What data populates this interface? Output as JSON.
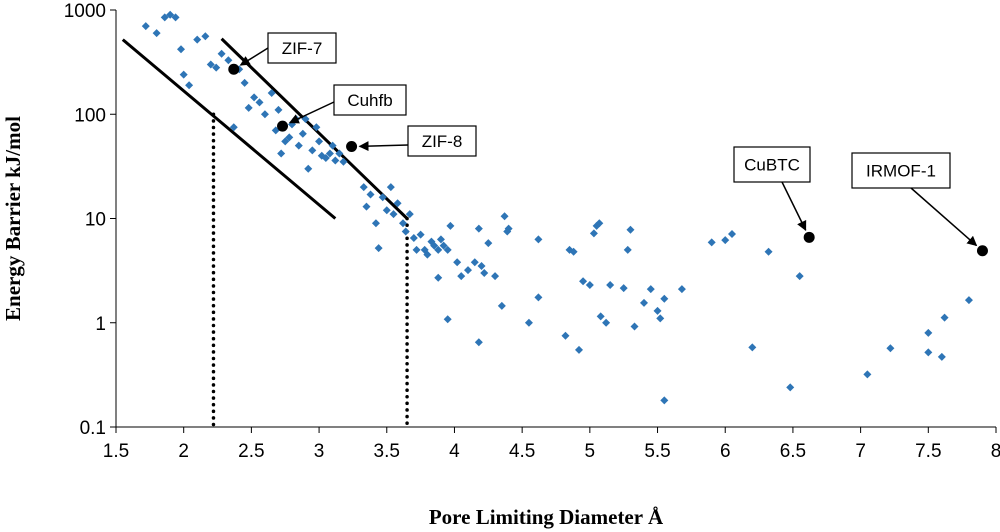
{
  "chart_data": {
    "type": "scatter",
    "title": "",
    "xlabel": "Pore Limiting Diameter Å",
    "ylabel": "Energy Barrier kJ/mol",
    "xlim": [
      1.5,
      8
    ],
    "ylim": [
      0.1,
      1000
    ],
    "yscale": "log",
    "grid": false,
    "x_ticks": [
      "1.5",
      "2",
      "2.5",
      "3",
      "3.5",
      "4",
      "4.5",
      "5",
      "5.5",
      "6",
      "6.5",
      "7",
      "7.5",
      "8"
    ],
    "y_ticks": [
      "0.1",
      "1",
      "10",
      "100",
      "1000"
    ],
    "colors": {
      "points": "#2e75b6",
      "highlight": "#000000",
      "lines": "#000000"
    },
    "points": [
      [
        1.72,
        700
      ],
      [
        1.8,
        600
      ],
      [
        1.86,
        850
      ],
      [
        1.9,
        900
      ],
      [
        1.94,
        850
      ],
      [
        1.98,
        420
      ],
      [
        2.0,
        240
      ],
      [
        2.04,
        190
      ],
      [
        2.1,
        520
      ],
      [
        2.16,
        560
      ],
      [
        2.2,
        300
      ],
      [
        2.24,
        280
      ],
      [
        2.28,
        380
      ],
      [
        2.33,
        330
      ],
      [
        2.37,
        75
      ],
      [
        2.41,
        270
      ],
      [
        2.45,
        200
      ],
      [
        2.48,
        115
      ],
      [
        2.52,
        145
      ],
      [
        2.56,
        130
      ],
      [
        2.6,
        100
      ],
      [
        2.65,
        160
      ],
      [
        2.68,
        70
      ],
      [
        2.7,
        110
      ],
      [
        2.72,
        42
      ],
      [
        2.75,
        55
      ],
      [
        2.78,
        60
      ],
      [
        2.8,
        80
      ],
      [
        2.83,
        90
      ],
      [
        2.85,
        50
      ],
      [
        2.88,
        65
      ],
      [
        2.9,
        90
      ],
      [
        2.92,
        30
      ],
      [
        2.95,
        45
      ],
      [
        2.98,
        75
      ],
      [
        3.0,
        55
      ],
      [
        3.02,
        40
      ],
      [
        3.05,
        38
      ],
      [
        3.08,
        42
      ],
      [
        3.1,
        50
      ],
      [
        3.12,
        36
      ],
      [
        3.15,
        42
      ],
      [
        3.18,
        35
      ],
      [
        3.33,
        20
      ],
      [
        3.35,
        13
      ],
      [
        3.38,
        17
      ],
      [
        3.42,
        9
      ],
      [
        3.44,
        5.2
      ],
      [
        3.47,
        16
      ],
      [
        3.5,
        12
      ],
      [
        3.53,
        20
      ],
      [
        3.55,
        11
      ],
      [
        3.58,
        14
      ],
      [
        3.62,
        9
      ],
      [
        3.64,
        7.5
      ],
      [
        3.67,
        11
      ],
      [
        3.7,
        6.5
      ],
      [
        3.72,
        5
      ],
      [
        3.75,
        7
      ],
      [
        3.78,
        5
      ],
      [
        3.8,
        4.5
      ],
      [
        3.83,
        6
      ],
      [
        3.85,
        5.5
      ],
      [
        3.88,
        5
      ],
      [
        3.9,
        6.3
      ],
      [
        3.92,
        5.5
      ],
      [
        3.95,
        5
      ],
      [
        3.97,
        8.5
      ],
      [
        3.88,
        2.7
      ],
      [
        3.95,
        1.08
      ],
      [
        4.02,
        3.8
      ],
      [
        4.05,
        2.8
      ],
      [
        4.1,
        3.2
      ],
      [
        4.15,
        3.8
      ],
      [
        4.18,
        8
      ],
      [
        4.2,
        3.5
      ],
      [
        4.22,
        3
      ],
      [
        4.18,
        0.65
      ],
      [
        4.25,
        5.8
      ],
      [
        4.3,
        2.8
      ],
      [
        4.35,
        1.45
      ],
      [
        4.37,
        10.5
      ],
      [
        4.39,
        7.5
      ],
      [
        4.4,
        8
      ],
      [
        4.55,
        1.0
      ],
      [
        4.62,
        1.75
      ],
      [
        4.62,
        6.3
      ],
      [
        4.82,
        0.75
      ],
      [
        4.85,
        5
      ],
      [
        4.88,
        4.8
      ],
      [
        4.92,
        0.55
      ],
      [
        4.95,
        2.5
      ],
      [
        5.0,
        2.3
      ],
      [
        5.03,
        7.2
      ],
      [
        5.05,
        8.5
      ],
      [
        5.07,
        9
      ],
      [
        5.08,
        1.15
      ],
      [
        5.12,
        1.0
      ],
      [
        5.15,
        2.3
      ],
      [
        5.25,
        2.15
      ],
      [
        5.28,
        5
      ],
      [
        5.3,
        7.8
      ],
      [
        5.33,
        0.92
      ],
      [
        5.4,
        1.55
      ],
      [
        5.45,
        2.1
      ],
      [
        5.5,
        1.3
      ],
      [
        5.52,
        1.1
      ],
      [
        5.55,
        1.7
      ],
      [
        5.55,
        0.18
      ],
      [
        5.68,
        2.1
      ],
      [
        5.9,
        5.9
      ],
      [
        6.0,
        6.2
      ],
      [
        6.05,
        7.1
      ],
      [
        6.2,
        0.58
      ],
      [
        6.32,
        4.8
      ],
      [
        6.48,
        0.24
      ],
      [
        6.55,
        2.8
      ],
      [
        7.05,
        0.32
      ],
      [
        7.22,
        0.57
      ],
      [
        7.5,
        0.52
      ],
      [
        7.5,
        0.8
      ],
      [
        7.6,
        0.47
      ],
      [
        7.62,
        1.12
      ],
      [
        7.8,
        1.65
      ]
    ],
    "highlighted": [
      {
        "label": "ZIF-7",
        "x": 2.37,
        "y": 270
      },
      {
        "label": "Cuhfb",
        "x": 2.73,
        "y": 77
      },
      {
        "label": "ZIF-8",
        "x": 3.24,
        "y": 49
      },
      {
        "label": "CuBTC",
        "x": 6.62,
        "y": 6.6
      },
      {
        "label": "IRMOF-1",
        "x": 7.9,
        "y": 4.9
      }
    ],
    "trend_lines": [
      {
        "x1": 1.55,
        "y1": 520,
        "x2": 3.12,
        "y2": 10
      },
      {
        "x1": 2.28,
        "y1": 530,
        "x2": 3.65,
        "y2": 10
      }
    ],
    "vertical_markers": [
      {
        "x": 2.22,
        "y_top": 100
      },
      {
        "x": 3.65,
        "y_top": 10
      }
    ]
  }
}
